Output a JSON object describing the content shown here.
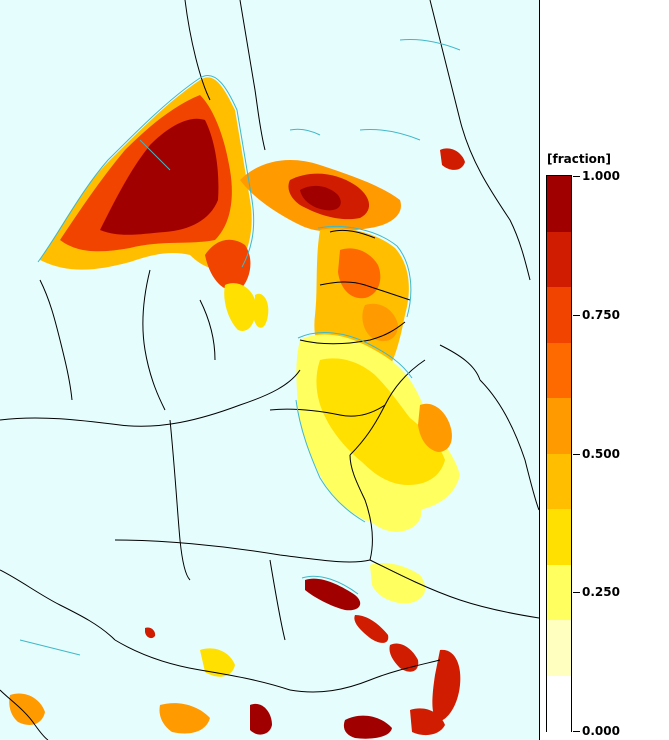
{
  "legend": {
    "unit": "[fraction]",
    "tick_labels": [
      "1.000",
      "0.750",
      "0.500",
      "0.250",
      "0.000"
    ],
    "colors": [
      "#a00000",
      "#d01c00",
      "#f04400",
      "#ff6a00",
      "#ff9a00",
      "#ffbf00",
      "#ffe000",
      "#ffff60",
      "#ffffc0",
      "#ffffff"
    ]
  },
  "map": {
    "background_color": "#e6fdfd",
    "contour_color": "#40b8c8",
    "border_color": "#000000"
  }
}
